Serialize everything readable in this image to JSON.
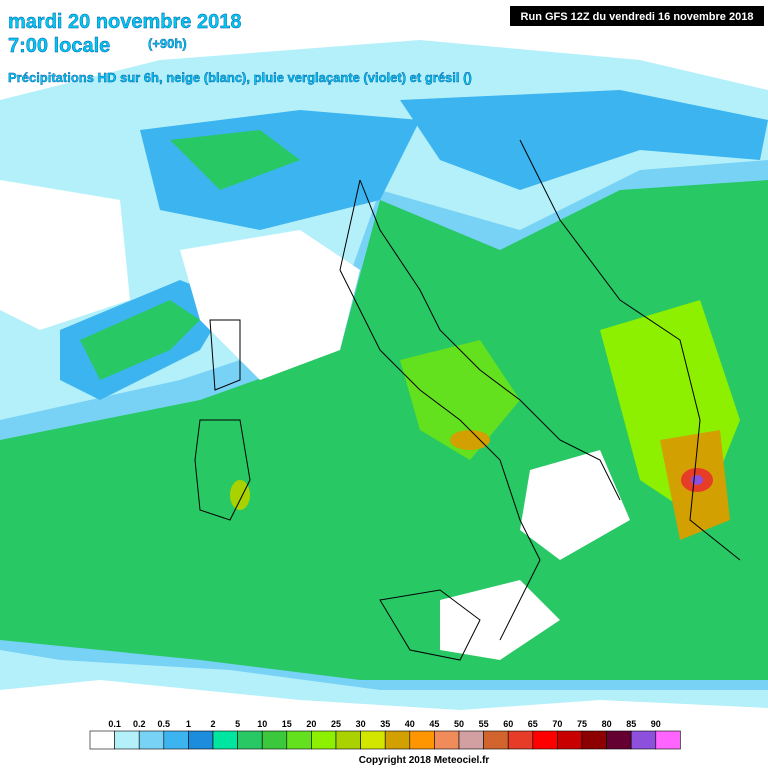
{
  "header": {
    "date": "mardi 20 novembre 2018",
    "time": "7:00 locale",
    "lead": "(+90h)",
    "description": "Précipitations HD sur 6h, neige (blanc), pluie verglaçante (violet) et grésil ()",
    "run": "Run GFS 12Z du vendredi 16 novembre 2018"
  },
  "legend": {
    "labels": [
      "0.1",
      "0.2",
      "0.5",
      "1",
      "2",
      "5",
      "10",
      "15",
      "20",
      "25",
      "30",
      "35",
      "40",
      "45",
      "50",
      "55",
      "60",
      "65",
      "70",
      "75",
      "80",
      "85",
      "90"
    ],
    "colors": [
      "#ffffff",
      "#b4f0fa",
      "#78d2f5",
      "#3cb4f0",
      "#1e8cdc",
      "#00e6a0",
      "#28c864",
      "#3cc83c",
      "#64e11e",
      "#8cf000",
      "#aad200",
      "#d2e600",
      "#d2a000",
      "#ff9600",
      "#f08c5a",
      "#d2a0a0",
      "#d2642d",
      "#e63c28",
      "#ff0000",
      "#c80000",
      "#8c0000",
      "#640032",
      "#8c50dc",
      "#ff64ff"
    ]
  },
  "footer": {
    "copyright": "Copyright 2018 Meteociel.fr"
  }
}
